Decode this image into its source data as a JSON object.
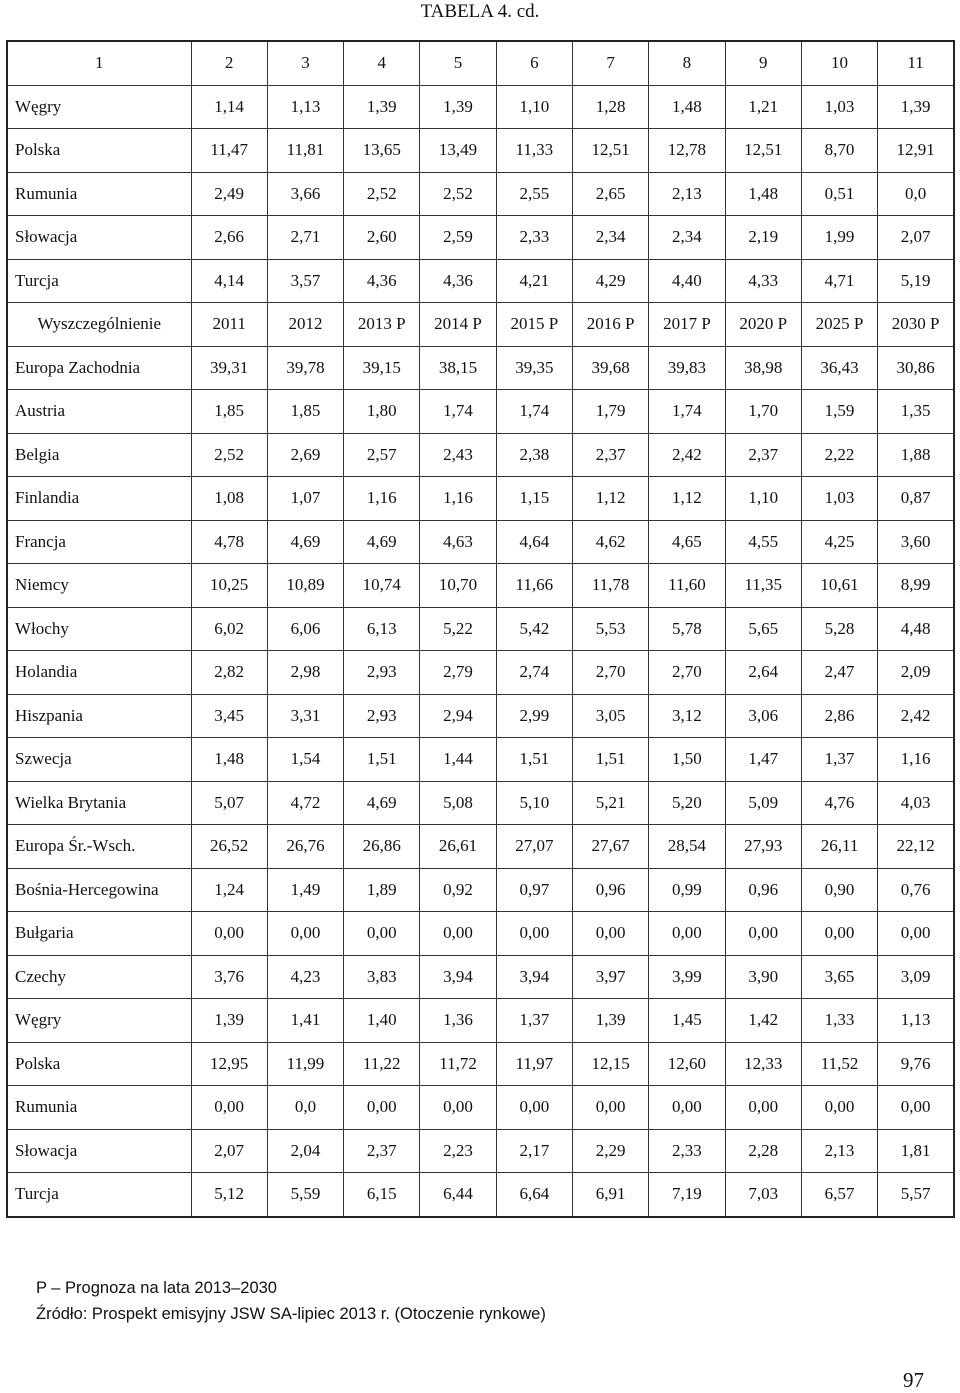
{
  "header": {
    "title": "TABELA 4. cd."
  },
  "table": {
    "rows": [
      [
        "1",
        "2",
        "3",
        "4",
        "5",
        "6",
        "7",
        "8",
        "9",
        "10",
        "11"
      ],
      [
        "Węgry",
        "1,14",
        "1,13",
        "1,39",
        "1,39",
        "1,10",
        "1,28",
        "1,48",
        "1,21",
        "1,03",
        "1,39"
      ],
      [
        "Polska",
        "11,47",
        "11,81",
        "13,65",
        "13,49",
        "11,33",
        "12,51",
        "12,78",
        "12,51",
        "8,70",
        "12,91"
      ],
      [
        "Rumunia",
        "2,49",
        "3,66",
        "2,52",
        "2,52",
        "2,55",
        "2,65",
        "2,13",
        "1,48",
        "0,51",
        "0,0"
      ],
      [
        "Słowacja",
        "2,66",
        "2,71",
        "2,60",
        "2,59",
        "2,33",
        "2,34",
        "2,34",
        "2,19",
        "1,99",
        "2,07"
      ],
      [
        "Turcja",
        "4,14",
        "3,57",
        "4,36",
        "4,36",
        "4,21",
        "4,29",
        "4,40",
        "4,33",
        "4,71",
        "5,19"
      ],
      [
        "Wyszczególnienie",
        "2011",
        "2012",
        "2013 P",
        "2014 P",
        "2015 P",
        "2016 P",
        "2017 P",
        "2020 P",
        "2025 P",
        "2030 P"
      ],
      [
        "Europa Zachodnia",
        "39,31",
        "39,78",
        "39,15",
        "38,15",
        "39,35",
        "39,68",
        "39,83",
        "38,98",
        "36,43",
        "30,86"
      ],
      [
        "Austria",
        "1,85",
        "1,85",
        "1,80",
        "1,74",
        "1,74",
        "1,79",
        "1,74",
        "1,70",
        "1,59",
        "1,35"
      ],
      [
        "Belgia",
        "2,52",
        "2,69",
        "2,57",
        "2,43",
        "2,38",
        "2,37",
        "2,42",
        "2,37",
        "2,22",
        "1,88"
      ],
      [
        "Finlandia",
        "1,08",
        "1,07",
        "1,16",
        "1,16",
        "1,15",
        "1,12",
        "1,12",
        "1,10",
        "1,03",
        "0,87"
      ],
      [
        "Francja",
        "4,78",
        "4,69",
        "4,69",
        "4,63",
        "4,64",
        "4,62",
        "4,65",
        "4,55",
        "4,25",
        "3,60"
      ],
      [
        "Niemcy",
        "10,25",
        "10,89",
        "10,74",
        "10,70",
        "11,66",
        "11,78",
        "11,60",
        "11,35",
        "10,61",
        "8,99"
      ],
      [
        "Włochy",
        "6,02",
        "6,06",
        "6,13",
        "5,22",
        "5,42",
        "5,53",
        "5,78",
        "5,65",
        "5,28",
        "4,48"
      ],
      [
        "Holandia",
        "2,82",
        "2,98",
        "2,93",
        "2,79",
        "2,74",
        "2,70",
        "2,70",
        "2,64",
        "2,47",
        "2,09"
      ],
      [
        "Hiszpania",
        "3,45",
        "3,31",
        "2,93",
        "2,94",
        "2,99",
        "3,05",
        "3,12",
        "3,06",
        "2,86",
        "2,42"
      ],
      [
        "Szwecja",
        "1,48",
        "1,54",
        "1,51",
        "1,44",
        "1,51",
        "1,51",
        "1,50",
        "1,47",
        "1,37",
        "1,16"
      ],
      [
        "Wielka Brytania",
        "5,07",
        "4,72",
        "4,69",
        "5,08",
        "5,10",
        "5,21",
        "5,20",
        "5,09",
        "4,76",
        "4,03"
      ],
      [
        "Europa Śr.-Wsch.",
        "26,52",
        "26,76",
        "26,86",
        "26,61",
        "27,07",
        "27,67",
        "28,54",
        "27,93",
        "26,11",
        "22,12"
      ],
      [
        "Bośnia-Hercegowina",
        "1,24",
        "1,49",
        "1,89",
        "0,92",
        "0,97",
        "0,96",
        "0,99",
        "0,96",
        "0,90",
        "0,76"
      ],
      [
        "Bułgaria",
        "0,00",
        "0,00",
        "0,00",
        "0,00",
        "0,00",
        "0,00",
        "0,00",
        "0,00",
        "0,00",
        "0,00"
      ],
      [
        "Czechy",
        "3,76",
        "4,23",
        "3,83",
        "3,94",
        "3,94",
        "3,97",
        "3,99",
        "3,90",
        "3,65",
        "3,09"
      ],
      [
        "Węgry",
        "1,39",
        "1,41",
        "1,40",
        "1,36",
        "1,37",
        "1,39",
        "1,45",
        "1,42",
        "1,33",
        "1,13"
      ],
      [
        "Polska",
        "12,95",
        "11,99",
        "11,22",
        "11,72",
        "11,97",
        "12,15",
        "12,60",
        "12,33",
        "11,52",
        "9,76"
      ],
      [
        "Rumunia",
        "0,00",
        "0,0",
        "0,00",
        "0,00",
        "0,00",
        "0,00",
        "0,00",
        "0,00",
        "0,00",
        "0,00"
      ],
      [
        "Słowacja",
        "2,07",
        "2,04",
        "2,37",
        "2,23",
        "2,17",
        "2,29",
        "2,33",
        "2,28",
        "2,13",
        "1,81"
      ],
      [
        "Turcja",
        "5,12",
        "5,59",
        "6,15",
        "6,44",
        "6,64",
        "6,91",
        "7,19",
        "7,03",
        "6,57",
        "5,57"
      ]
    ]
  },
  "footer": {
    "notes": [
      "P – Prognoza na lata 2013–2030",
      "Źródło: Prospekt emisyjny JSW SA-lipiec 2013 r. (Otoczenie rynkowe)"
    ],
    "page_number": "97"
  }
}
